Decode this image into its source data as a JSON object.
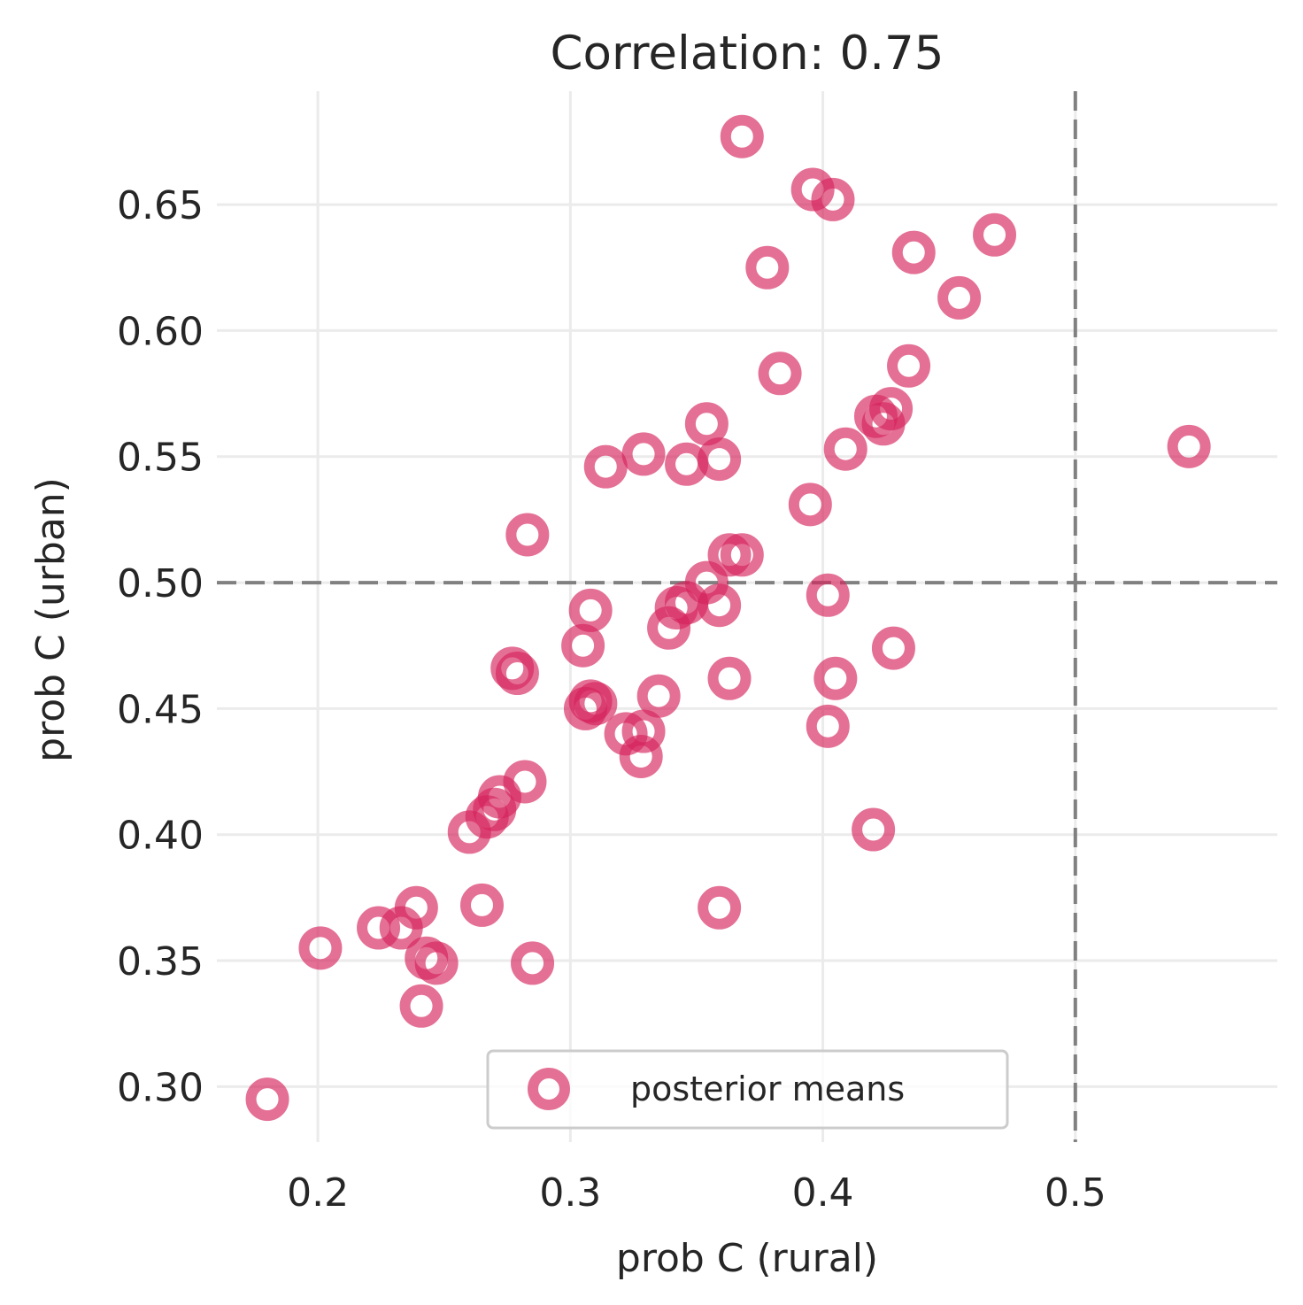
{
  "chart_data": {
    "type": "scatter",
    "title": "Correlation: 0.75",
    "xlabel": "prob C (rural)",
    "ylabel": "prob C (urban)",
    "xlim": [
      0.16,
      0.58
    ],
    "ylim": [
      0.278,
      0.695
    ],
    "xticks": [
      0.2,
      0.3,
      0.4,
      0.5
    ],
    "xtick_labels": [
      "0.2",
      "0.3",
      "0.4",
      "0.5"
    ],
    "yticks": [
      0.3,
      0.35,
      0.4,
      0.45,
      0.5,
      0.55,
      0.6,
      0.65
    ],
    "ytick_labels": [
      "0.30",
      "0.35",
      "0.40",
      "0.45",
      "0.50",
      "0.55",
      "0.60",
      "0.65"
    ],
    "grid": true,
    "reference_lines": {
      "vertical_x": 0.5,
      "horizontal_y": 0.5,
      "style": "dashed",
      "color": "#808080"
    },
    "legend": {
      "position": "lower-center",
      "entries": [
        "posterior means"
      ]
    },
    "series": [
      {
        "name": "posterior means",
        "marker": "open-circle",
        "color": "#d6245c",
        "alpha": 0.65,
        "points": [
          [
            0.18,
            0.295
          ],
          [
            0.201,
            0.355
          ],
          [
            0.224,
            0.363
          ],
          [
            0.233,
            0.363
          ],
          [
            0.239,
            0.371
          ],
          [
            0.241,
            0.332
          ],
          [
            0.243,
            0.351
          ],
          [
            0.247,
            0.349
          ],
          [
            0.265,
            0.372
          ],
          [
            0.285,
            0.349
          ],
          [
            0.26,
            0.401
          ],
          [
            0.267,
            0.407
          ],
          [
            0.27,
            0.41
          ],
          [
            0.272,
            0.415
          ],
          [
            0.282,
            0.421
          ],
          [
            0.277,
            0.466
          ],
          [
            0.279,
            0.464
          ],
          [
            0.283,
            0.519
          ],
          [
            0.305,
            0.475
          ],
          [
            0.308,
            0.489
          ],
          [
            0.306,
            0.45
          ],
          [
            0.308,
            0.453
          ],
          [
            0.31,
            0.452
          ],
          [
            0.322,
            0.44
          ],
          [
            0.329,
            0.441
          ],
          [
            0.328,
            0.431
          ],
          [
            0.335,
            0.455
          ],
          [
            0.314,
            0.546
          ],
          [
            0.329,
            0.551
          ],
          [
            0.346,
            0.547
          ],
          [
            0.354,
            0.563
          ],
          [
            0.359,
            0.549
          ],
          [
            0.339,
            0.482
          ],
          [
            0.342,
            0.49
          ],
          [
            0.346,
            0.492
          ],
          [
            0.354,
            0.5
          ],
          [
            0.359,
            0.491
          ],
          [
            0.363,
            0.511
          ],
          [
            0.368,
            0.511
          ],
          [
            0.363,
            0.462
          ],
          [
            0.359,
            0.371
          ],
          [
            0.368,
            0.677
          ],
          [
            0.396,
            0.656
          ],
          [
            0.404,
            0.652
          ],
          [
            0.378,
            0.625
          ],
          [
            0.383,
            0.583
          ],
          [
            0.395,
            0.531
          ],
          [
            0.402,
            0.495
          ],
          [
            0.405,
            0.462
          ],
          [
            0.402,
            0.443
          ],
          [
            0.42,
            0.402
          ],
          [
            0.409,
            0.553
          ],
          [
            0.421,
            0.566
          ],
          [
            0.424,
            0.563
          ],
          [
            0.427,
            0.569
          ],
          [
            0.428,
            0.474
          ],
          [
            0.434,
            0.586
          ],
          [
            0.436,
            0.631
          ],
          [
            0.454,
            0.613
          ],
          [
            0.468,
            0.638
          ],
          [
            0.545,
            0.554
          ]
        ]
      }
    ]
  }
}
